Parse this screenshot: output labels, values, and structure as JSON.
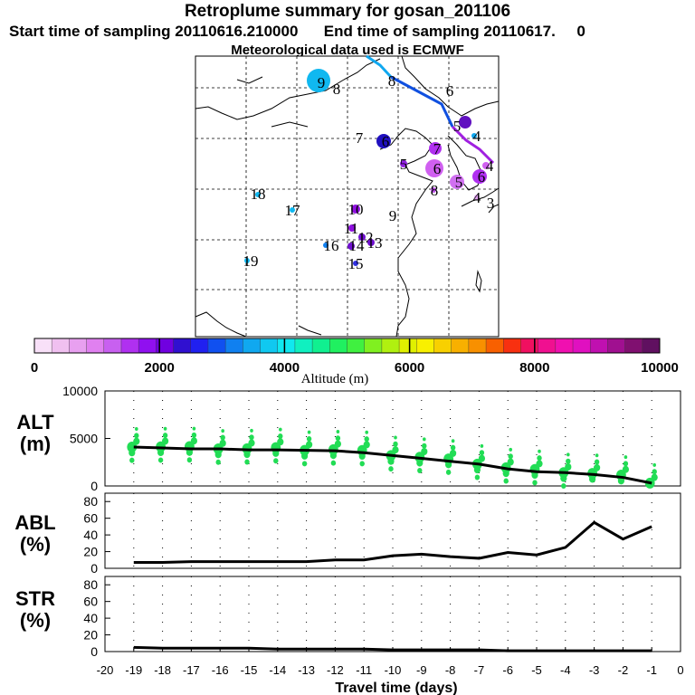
{
  "header": {
    "title": "Retroplume summary for gosan_201106",
    "start_label": "Start time of sampling 20110616.210000",
    "end_label": "End time of sampling 20110617.",
    "end_suffix": "0",
    "met_label": "Meteorological data used is ECMWF"
  },
  "colors": {
    "plume_green": "#22dd55",
    "line": "#000000",
    "colorbar": [
      "#f8e0f8",
      "#f0c0f0",
      "#e8a0f0",
      "#e080f0",
      "#c860f0",
      "#b030f0",
      "#9010f0",
      "#7000e0",
      "#3010d0",
      "#2020f0",
      "#1050f0",
      "#1080f0",
      "#10a8f0",
      "#10c8f0",
      "#10e8f0",
      "#10f0c0",
      "#10f090",
      "#20f060",
      "#40f040",
      "#80f020",
      "#b0f010",
      "#e0f000",
      "#f8f000",
      "#f8d000",
      "#f8b000",
      "#f89000",
      "#f86000",
      "#f83010",
      "#f01060",
      "#f01090",
      "#f010b0",
      "#e010c0",
      "#c010b0",
      "#a01090",
      "#801070",
      "#601060"
    ]
  },
  "chart_data": [
    {
      "type": "map",
      "title": "Retroplume positions",
      "points": [
        {
          "label": "9",
          "color": "#10b8f0",
          "size": "large"
        },
        {
          "label": "8",
          "color": "#10b8f0",
          "size": "small"
        },
        {
          "label": "8",
          "color": "#10a8f0",
          "size": "small"
        },
        {
          "label": "7",
          "color": "#2020d0",
          "size": "small"
        },
        {
          "label": "6",
          "color": "#2010c0",
          "size": "medium"
        },
        {
          "label": "6",
          "color": "#2080f0",
          "size": "small"
        },
        {
          "label": "5",
          "color": "#6010c0",
          "size": "medium"
        },
        {
          "label": "4",
          "color": "#10a8f0",
          "size": "small"
        },
        {
          "label": "7",
          "color": "#b030f0",
          "size": "medium"
        },
        {
          "label": "6",
          "color": "#d060f0",
          "size": "large"
        },
        {
          "label": "5",
          "color": "#9020e0",
          "size": "small"
        },
        {
          "label": "8",
          "color": "#c050f0",
          "size": "small"
        },
        {
          "label": "5",
          "color": "#d070f0",
          "size": "medium"
        },
        {
          "label": "6",
          "color": "#b030f0",
          "size": "medium"
        },
        {
          "label": "4",
          "color": "#d060f0",
          "size": "small"
        },
        {
          "label": "4",
          "color": "#e0a0f0",
          "size": "small"
        },
        {
          "label": "3",
          "color": "#e8b0f0",
          "size": "small"
        },
        {
          "label": "10",
          "color": "#9010e0",
          "size": "small"
        },
        {
          "label": "9",
          "color": "#9010e0",
          "size": "small"
        },
        {
          "label": "11",
          "color": "#9010e0",
          "size": "small"
        },
        {
          "label": "12",
          "color": "#7010d0",
          "size": "small"
        },
        {
          "label": "13",
          "color": "#7010d0",
          "size": "small"
        },
        {
          "label": "14",
          "color": "#7010d0",
          "size": "small"
        },
        {
          "label": "15",
          "color": "#3030e0",
          "size": "small"
        },
        {
          "label": "16",
          "color": "#1080f0",
          "size": "small"
        },
        {
          "label": "17",
          "color": "#10b8f0",
          "size": "small"
        },
        {
          "label": "18",
          "color": "#10b8f0",
          "size": "small"
        },
        {
          "label": "19",
          "color": "#10b8f0",
          "size": "small"
        }
      ]
    },
    {
      "type": "colorbar",
      "xlabel": "Altitude (m)",
      "range": [
        0,
        10000
      ],
      "tick_labels": [
        "0",
        "2000",
        "4000",
        "6000",
        "8000",
        "10000"
      ]
    },
    {
      "type": "line",
      "ylabel": "ALT\n(m)",
      "ylabel_lines": [
        "ALT",
        "(m)"
      ],
      "ylim": [
        0,
        10000
      ],
      "yticks": [
        "10000",
        "5000",
        "0"
      ],
      "x": [
        -19,
        -18,
        -17,
        -16,
        -15,
        -14,
        -13,
        -12,
        -11,
        -10,
        -9,
        -8,
        -7,
        -6,
        -5,
        -4,
        -3,
        -2,
        -1
      ],
      "values": [
        4100,
        4000,
        3900,
        3900,
        3800,
        3800,
        3750,
        3700,
        3500,
        3200,
        2900,
        2600,
        2300,
        1800,
        1500,
        1400,
        1200,
        900,
        300
      ]
    },
    {
      "type": "line",
      "ylabel": "ABL\n(%)",
      "ylabel_lines": [
        "ABL",
        "(%)"
      ],
      "ylim": [
        0,
        90
      ],
      "yticks": [
        "80",
        "60",
        "40",
        "20",
        "0"
      ],
      "x": [
        -19,
        -18,
        -17,
        -16,
        -15,
        -14,
        -13,
        -12,
        -11,
        -10,
        -9,
        -8,
        -7,
        -6,
        -5,
        -4,
        -3,
        -2,
        -1
      ],
      "values": [
        7,
        7,
        8,
        8,
        8,
        8,
        8,
        10,
        10,
        15,
        17,
        14,
        12,
        19,
        16,
        25,
        55,
        35,
        50
      ]
    },
    {
      "type": "line",
      "ylabel": "STR\n(%)",
      "ylabel_lines": [
        "STR",
        "(%)"
      ],
      "ylim": [
        0,
        90
      ],
      "yticks": [
        "80",
        "60",
        "40",
        "20",
        "0"
      ],
      "xlabel": "Travel time (days)",
      "x": [
        -19,
        -18,
        -17,
        -16,
        -15,
        -14,
        -13,
        -12,
        -11,
        -10,
        -9,
        -8,
        -7,
        -6,
        -5,
        -4,
        -3,
        -2,
        -1
      ],
      "values": [
        5,
        4,
        4,
        4,
        4,
        3,
        3,
        3,
        3,
        2,
        2,
        2,
        2,
        1,
        1,
        1,
        1,
        1,
        1
      ],
      "xticks": [
        "-20",
        "-19",
        "-18",
        "-17",
        "-16",
        "-15",
        "-14",
        "-13",
        "-12",
        "-11",
        "-10",
        "-9",
        "-8",
        "-7",
        "-6",
        "-5",
        "-4",
        "-3",
        "-2",
        "-1",
        "0"
      ]
    }
  ]
}
